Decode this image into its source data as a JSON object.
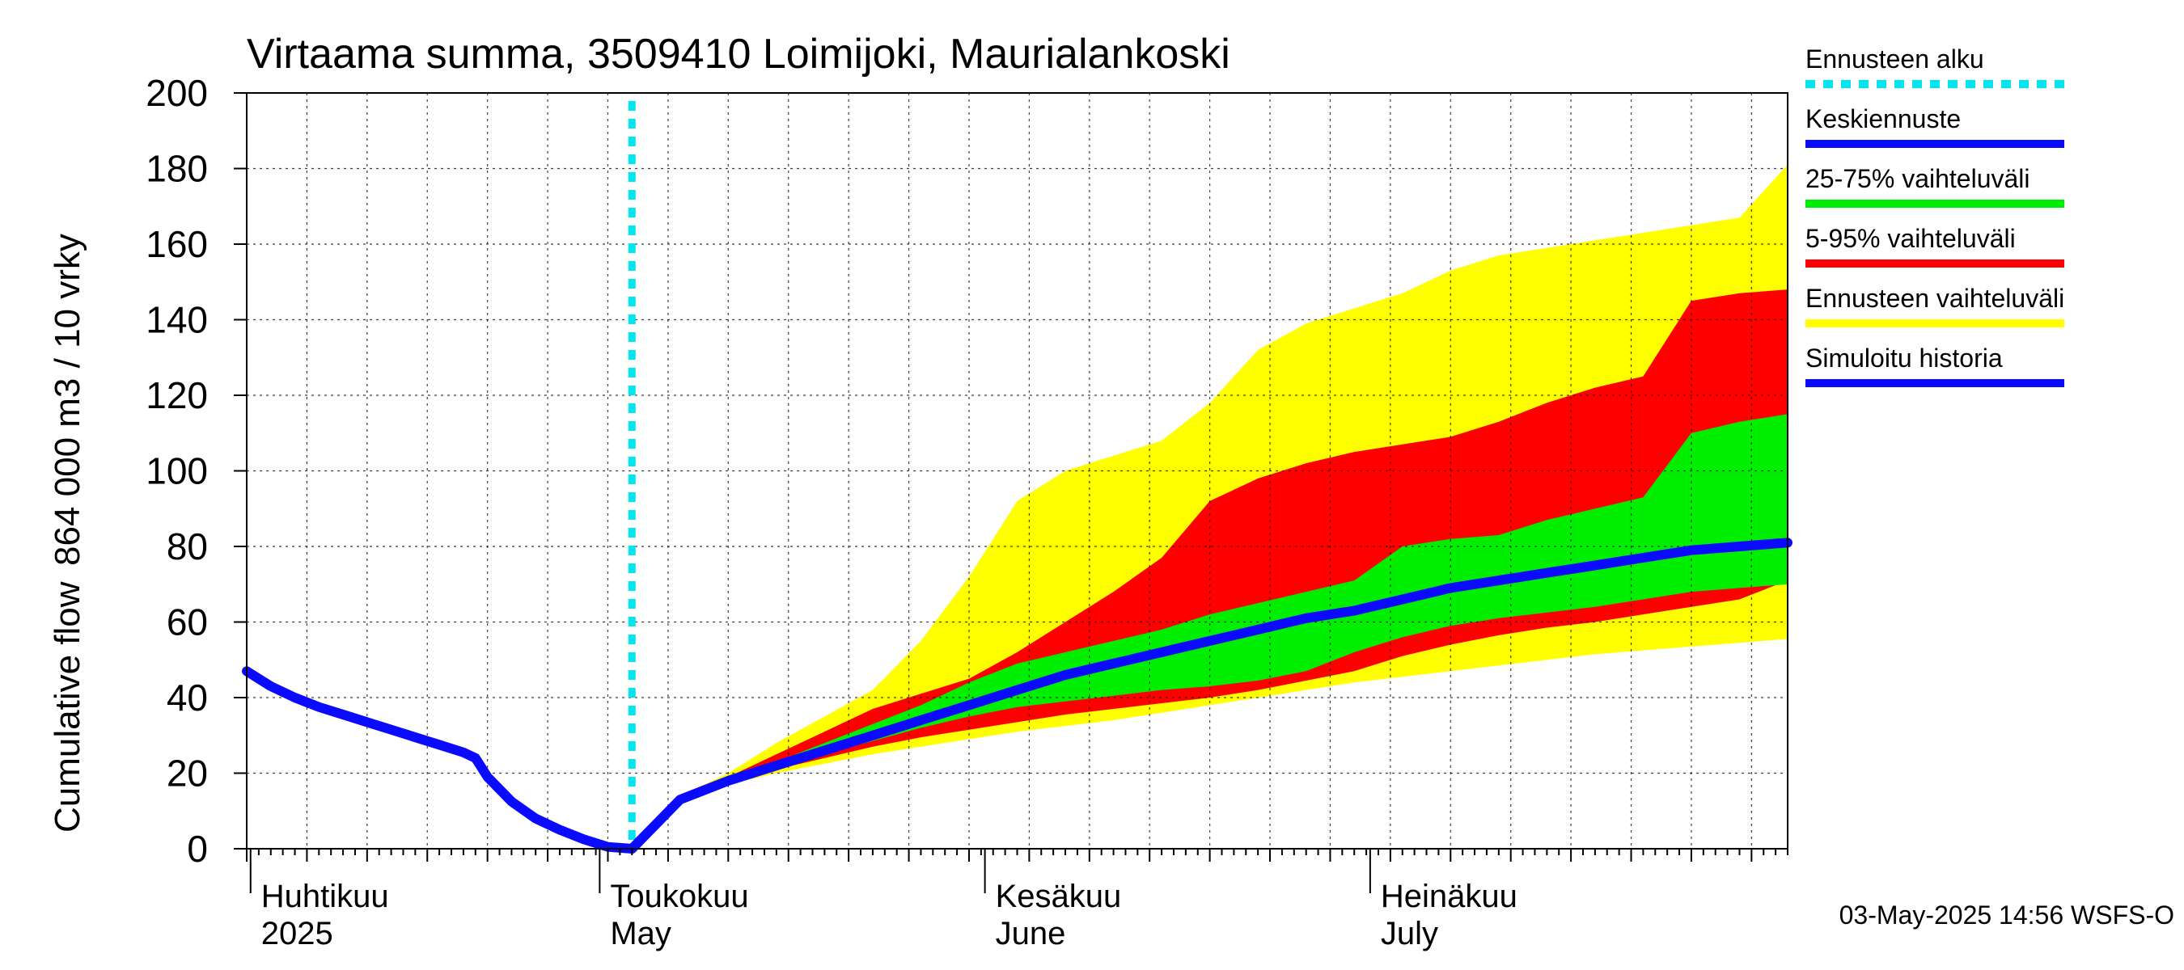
{
  "chart_data": {
    "type": "area",
    "title": "Virtaama summa, 3509410 Loimijoki, Maurialankoski",
    "ylabel_line1": "Cumulative flow",
    "ylabel_line2": "864 000 m3 / 10 vrky",
    "ylim": [
      0,
      200
    ],
    "yticks": [
      0,
      20,
      40,
      60,
      80,
      100,
      120,
      140,
      160,
      180,
      200
    ],
    "x_domain_days": [
      0,
      128
    ],
    "grid": true,
    "legend_position": "right",
    "month_labels": [
      {
        "day": 2,
        "fi": "Huhtikuu",
        "en": "2025"
      },
      {
        "day": 31,
        "fi": "Toukokuu",
        "en": "May"
      },
      {
        "day": 63,
        "fi": "Kesäkuu",
        "en": "June"
      },
      {
        "day": 95,
        "fi": "Heinäkuu",
        "en": "July"
      }
    ],
    "forecast_start_day": 32,
    "legend": [
      {
        "label": "Ennusteen alku",
        "color": "#00e5ee",
        "style": "dotted"
      },
      {
        "label": "Keskiennuste",
        "color": "#0a0aff",
        "style": "solid"
      },
      {
        "label": "25-75% vaihteluväli",
        "color": "#00ee00",
        "style": "solid"
      },
      {
        "label": "5-95% vaihteluväli",
        "color": "#ff0000",
        "style": "solid"
      },
      {
        "label": "Ennusteen vaihteluväli",
        "color": "#ffff00",
        "style": "solid"
      },
      {
        "label": "Simuloitu historia",
        "color": "#0a0aff",
        "style": "solid"
      }
    ],
    "colors": {
      "yellow": "#ffff00",
      "red": "#ff0000",
      "green": "#00ee00",
      "blue": "#0a0aff",
      "cyan": "#00e5ee"
    },
    "history": {
      "x": [
        0,
        2,
        4,
        6,
        8,
        10,
        12,
        14,
        16,
        18,
        19,
        20,
        22,
        24,
        26,
        28,
        30,
        32
      ],
      "y": [
        47,
        43,
        40,
        37.5,
        35.5,
        33.5,
        31.5,
        29.5,
        27.5,
        25.5,
        24,
        19,
        12.5,
        8,
        5,
        2.5,
        0.5,
        0
      ]
    },
    "bands": {
      "x": [
        32,
        36,
        40,
        44,
        48,
        52,
        56,
        60,
        64,
        68,
        72,
        76,
        80,
        84,
        88,
        92,
        96,
        100,
        104,
        108,
        112,
        116,
        120,
        124,
        128
      ],
      "min": [
        0,
        13,
        17,
        20,
        22.5,
        25,
        27,
        29,
        31,
        32.5,
        34,
        36,
        38,
        40,
        42,
        44,
        45.5,
        47,
        48.5,
        50,
        51.5,
        52.5,
        53.5,
        54.5,
        55.5
      ],
      "p5": [
        0,
        13,
        17.5,
        21,
        24,
        27,
        29.5,
        31.5,
        33.5,
        35.5,
        37,
        38.5,
        40,
        42,
        44.5,
        47,
        51,
        54,
        56.5,
        58.5,
        60,
        62,
        64,
        66,
        71
      ],
      "p25": [
        0,
        13,
        18,
        21.5,
        25,
        28.5,
        32,
        35,
        37.5,
        39,
        40.5,
        42,
        43,
        44.5,
        47,
        52,
        56,
        59,
        61,
        62.5,
        64,
        66,
        68,
        69,
        70
      ],
      "mean": [
        0,
        13,
        18,
        22,
        26,
        30,
        34,
        38,
        42,
        46,
        49,
        52,
        55,
        58,
        61,
        63,
        66,
        69,
        71,
        73,
        75,
        77,
        79,
        80,
        81
      ],
      "p75": [
        0,
        13,
        18.5,
        23,
        28,
        33,
        38,
        44,
        49,
        52,
        55,
        58,
        62,
        65,
        68,
        71,
        80,
        82,
        83,
        87,
        90,
        93,
        110,
        113,
        115
      ],
      "p95": [
        0,
        13,
        19,
        25,
        31,
        37,
        41,
        45,
        52,
        60,
        68,
        77,
        92,
        98,
        102,
        105,
        107,
        109,
        113,
        118,
        122,
        125,
        145,
        147,
        148
      ],
      "max": [
        0,
        14,
        20,
        28,
        35,
        42,
        55,
        72,
        92,
        100,
        104,
        108,
        118,
        132,
        139,
        143,
        147,
        153,
        157,
        159,
        161,
        163,
        165,
        167,
        181
      ]
    }
  },
  "timestamp": "03-May-2025 14:56 WSFS-O"
}
